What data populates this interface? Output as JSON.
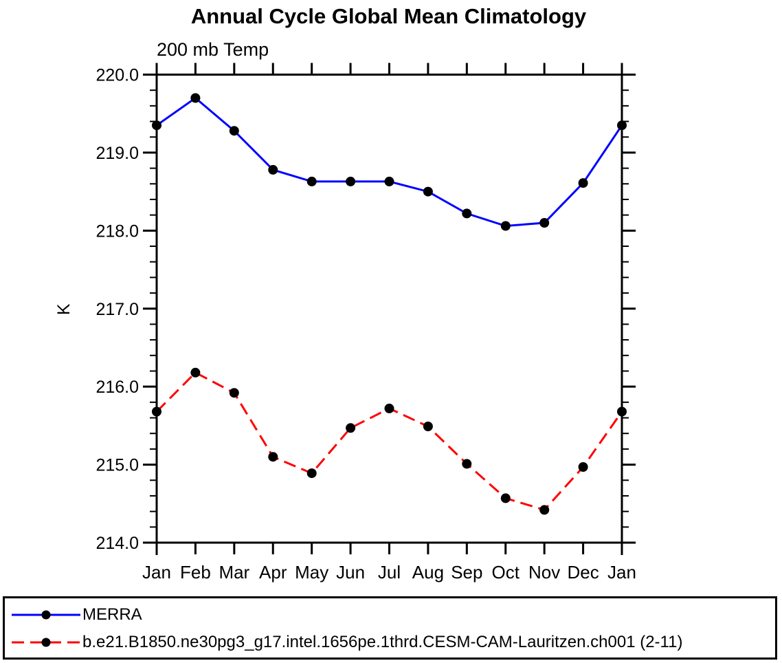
{
  "chart_data": {
    "type": "line",
    "title": "Annual Cycle Global Mean Climatology",
    "subtitle": "200 mb Temp",
    "xlabel": "",
    "ylabel": "K",
    "categories": [
      "Jan",
      "Feb",
      "Mar",
      "Apr",
      "May",
      "Jun",
      "Jul",
      "Aug",
      "Sep",
      "Oct",
      "Nov",
      "Dec",
      "Jan"
    ],
    "ylim": [
      214.0,
      220.0
    ],
    "y_major_step": 1.0,
    "y_minor_step": 0.2,
    "y_tick_labels": [
      "214.0",
      "215.0",
      "216.0",
      "217.0",
      "218.0",
      "219.0",
      "220.0"
    ],
    "grid": false,
    "legend_position": "bottom-left-box",
    "axis_color": "#000000",
    "marker_shape": "filled-circle",
    "series": [
      {
        "name": "MERRA",
        "color": "#0000ff",
        "line_style": "solid",
        "marker_color": "#000000",
        "values": [
          219.35,
          219.7,
          219.28,
          218.78,
          218.63,
          218.63,
          218.63,
          218.5,
          218.22,
          218.06,
          218.1,
          218.61,
          219.35
        ]
      },
      {
        "name": "b.e21.B1850.ne30pg3_g17.intel.1656pe.1thrd.CESM-CAM-Lauritzen.ch001 (2-11)",
        "color": "#ff0000",
        "line_style": "dashed",
        "marker_color": "#000000",
        "values": [
          215.68,
          216.18,
          215.92,
          215.1,
          214.89,
          215.47,
          215.72,
          215.49,
          215.01,
          214.57,
          214.42,
          214.97,
          215.68
        ]
      }
    ]
  }
}
